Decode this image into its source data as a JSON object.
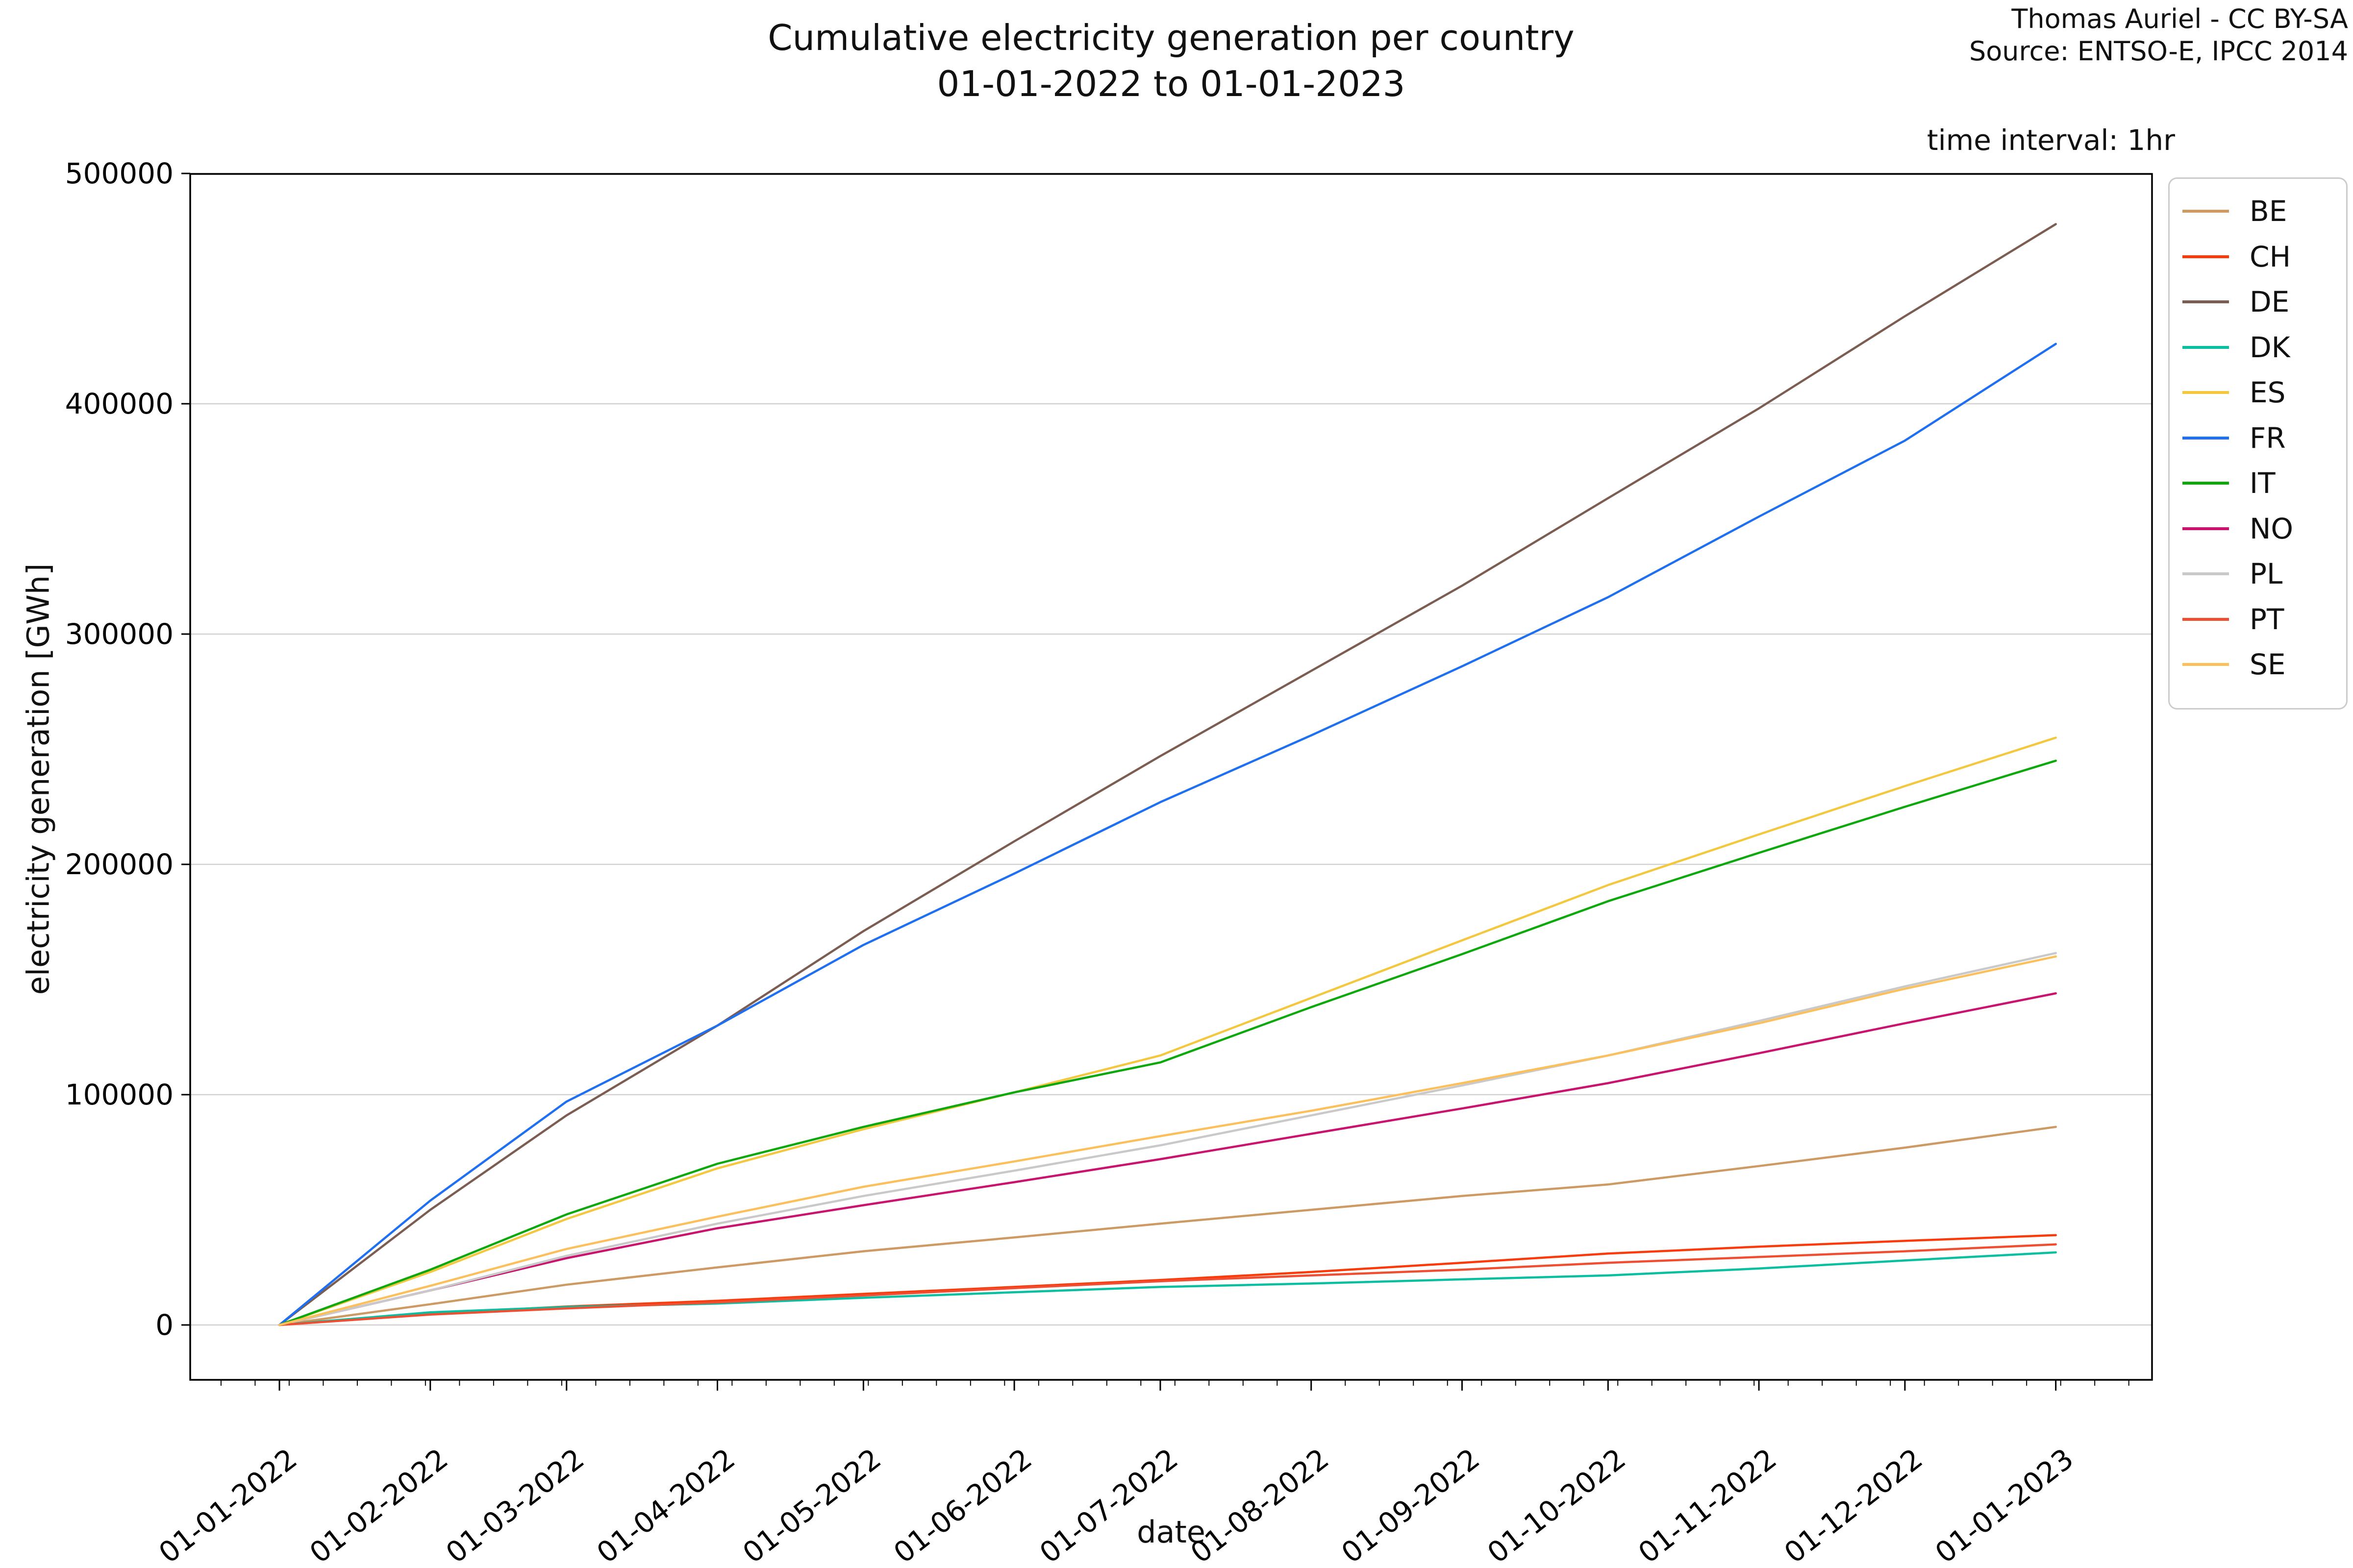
{
  "header": {
    "title": "Cumulative electricity generation per country",
    "subtitle": "01-01-2022 to 01-01-2023",
    "attribution_line1": "Thomas Auriel - CC BY-SA",
    "attribution_line2": "Source: ENTSO-E, IPCC 2014",
    "time_interval_label": "time interval: 1hr"
  },
  "chart_data": {
    "type": "line",
    "title": "Cumulative electricity generation per country",
    "subtitle": "01-01-2022 to 01-01-2023",
    "xlabel": "date",
    "ylabel": "electricity generation [GWh]",
    "grid": "horizontal gridlines at y major ticks",
    "legend_position": "outside upper right",
    "y_ticks": [
      0,
      100000,
      200000,
      300000,
      400000,
      500000
    ],
    "ylim": [
      -25000,
      500000
    ],
    "x_minor_ticks": "weekly",
    "categories": [
      "01-01-2022",
      "01-02-2022",
      "01-03-2022",
      "01-04-2022",
      "01-05-2022",
      "01-06-2022",
      "01-07-2022",
      "01-08-2022",
      "01-09-2022",
      "01-10-2022",
      "01-11-2022",
      "01-12-2022",
      "01-01-2023"
    ],
    "x_tick_labels": [
      "01-01-2022",
      "01-02-2022",
      "01-03-2022",
      "01-04-2022",
      "01-05-2022",
      "01-06-2022",
      "01-07-2022",
      "01-08-2022",
      "01-09-2022",
      "01-10-2022",
      "01-11-2022",
      "01-12-2022",
      "01-01-2023"
    ],
    "series": [
      {
        "name": "BE",
        "color": "#ce9a63",
        "values": [
          0,
          9000,
          17500,
          25000,
          32000,
          38000,
          44000,
          50000,
          56000,
          61000,
          69000,
          77000,
          86000
        ]
      },
      {
        "name": "CH",
        "color": "#fa3b09",
        "values": [
          0,
          5000,
          8000,
          10500,
          13500,
          16500,
          19500,
          23000,
          27000,
          31000,
          34000,
          36500,
          39000
        ]
      },
      {
        "name": "DE",
        "color": "#7b5d52",
        "values": [
          0,
          50000,
          91000,
          130000,
          171000,
          210000,
          247000,
          284000,
          321000,
          359000,
          398000,
          438000,
          478000
        ]
      },
      {
        "name": "DK",
        "color": "#0abfa0",
        "values": [
          0,
          5500,
          7800,
          9300,
          11800,
          14200,
          16500,
          18000,
          19800,
          21500,
          24500,
          28000,
          31500
        ]
      },
      {
        "name": "ES",
        "color": "#f3c73e",
        "values": [
          0,
          23000,
          46000,
          68000,
          85000,
          101000,
          117000,
          142000,
          167000,
          191000,
          213000,
          234000,
          255000
        ]
      },
      {
        "name": "FR",
        "color": "#1e6ff2",
        "values": [
          0,
          54000,
          97000,
          130000,
          165000,
          196000,
          227000,
          256000,
          286000,
          316000,
          351000,
          384000,
          426000
        ]
      },
      {
        "name": "IT",
        "color": "#0ca80c",
        "values": [
          0,
          24000,
          48000,
          70000,
          86000,
          101000,
          114000,
          138000,
          161000,
          184000,
          205000,
          225000,
          245000
        ]
      },
      {
        "name": "NO",
        "color": "#c9136e",
        "values": [
          0,
          15000,
          29000,
          42000,
          52000,
          62000,
          72000,
          83000,
          94000,
          105000,
          118000,
          131000,
          144000
        ]
      },
      {
        "name": "PL",
        "color": "#c9c9c9",
        "values": [
          0,
          15000,
          30000,
          44000,
          56000,
          67000,
          78000,
          91000,
          104000,
          117000,
          132000,
          147000,
          161500
        ]
      },
      {
        "name": "PT",
        "color": "#ef4e32",
        "values": [
          0,
          4500,
          7200,
          9800,
          12800,
          16000,
          19000,
          21500,
          24000,
          27000,
          29500,
          32000,
          35000
        ]
      },
      {
        "name": "SE",
        "color": "#fbc05c",
        "values": [
          0,
          17000,
          33000,
          47000,
          60000,
          71000,
          82000,
          93000,
          105000,
          117000,
          131000,
          146000,
          160000
        ]
      }
    ]
  }
}
